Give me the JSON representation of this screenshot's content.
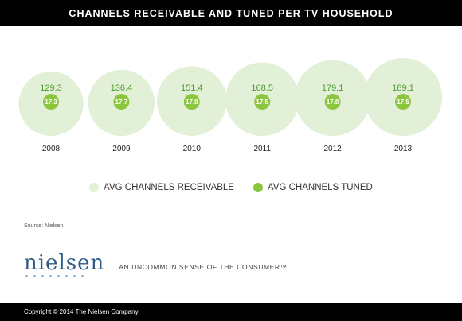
{
  "header": {
    "title": "CHANNELS RECEIVABLE AND TUNED PER TV HOUSEHOLD"
  },
  "chart_data": {
    "type": "bubble",
    "title": "CHANNELS RECEIVABLE AND TUNED PER TV HOUSEHOLD",
    "categories": [
      "2008",
      "2009",
      "2010",
      "2011",
      "2012",
      "2013"
    ],
    "series": [
      {
        "name": "AVG CHANNELS RECEIVABLE",
        "values": [
          129.3,
          136.4,
          151.4,
          168.5,
          179.1,
          189.1
        ],
        "labels": [
          "129.3",
          "136.4",
          "151.4",
          "168.5",
          "179.1",
          "189.1"
        ],
        "color": "#e1f0d6"
      },
      {
        "name": "AVG CHANNELS TUNED",
        "values": [
          17.3,
          17.7,
          17.8,
          17.5,
          17.8,
          17.5
        ],
        "labels": [
          "17.3",
          "17.7",
          "17.8",
          "17.5",
          "17.8",
          "17.5"
        ],
        "color": "#8cc63f"
      }
    ],
    "value_label_color": "#4f9a32",
    "grid": false,
    "legend_position": "bottom"
  },
  "legend": {
    "receivable_label": "AVG CHANNELS RECEIVABLE",
    "tuned_label": "AVG CHANNELS TUNED"
  },
  "source": "Source: Nielsen",
  "brand": {
    "logo_text": "nielsen",
    "tagline": "AN UNCOMMON SENSE OF THE CONSUMER™"
  },
  "footer": {
    "copyright": "Copyright © 2014 The Nielsen Company"
  }
}
